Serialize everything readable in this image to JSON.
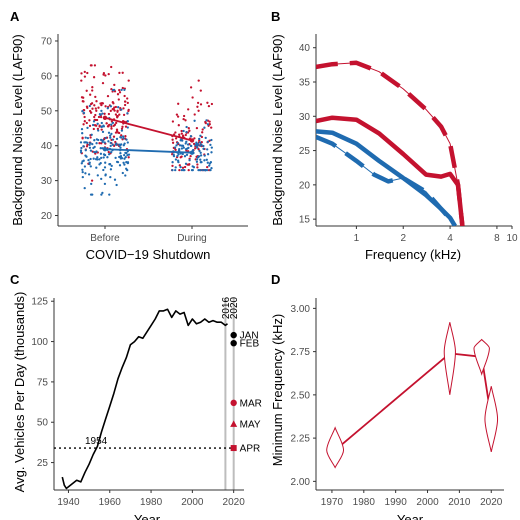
{
  "colors": {
    "red": "#c4122f",
    "blue": "#1f6bb0",
    "black": "#000000",
    "grey": "#bdbdbd"
  },
  "chart_data": [
    {
      "panel": "A",
      "type": "scatter",
      "xlabel": "COVID−19 Shutdown",
      "ylabel": "Background Noise Level (LAF90)",
      "categories": [
        "Before",
        "During"
      ],
      "ylim": [
        17,
        72
      ],
      "yticks": [
        "20",
        "30",
        "40",
        "50",
        "60",
        "70"
      ],
      "series": [
        {
          "color": "red",
          "means": [
            48,
            41.5
          ],
          "spread": [
            [
              30,
              63
            ],
            [
              33,
              62
            ]
          ]
        },
        {
          "color": "blue",
          "means": [
            39,
            38
          ],
          "spread": [
            [
              26,
              56
            ],
            [
              33,
              52
            ]
          ]
        }
      ]
    },
    {
      "panel": "B",
      "type": "line",
      "xlabel": "Frequency (kHz)",
      "ylabel": "Background Noise Level (LAF90)",
      "xscale": "log",
      "xlim": [
        0.55,
        10
      ],
      "ylim": [
        14,
        42
      ],
      "xticks": [
        "1",
        "2",
        "4",
        "8",
        "10"
      ],
      "yticks": [
        "15",
        "20",
        "25",
        "30",
        "35",
        "40"
      ],
      "series": [
        {
          "color": "red",
          "style": "dashed",
          "x": [
            0.55,
            0.7,
            1,
            1.4,
            2,
            2.8,
            3.5,
            4,
            4.5,
            4.8
          ],
          "y": [
            37.2,
            37.6,
            37.8,
            36.5,
            34,
            31,
            28.5,
            26,
            20,
            14
          ]
        },
        {
          "color": "red",
          "style": "solid",
          "x": [
            0.55,
            0.7,
            1,
            1.4,
            2,
            2.8,
            3.5,
            4,
            4.5,
            4.8
          ],
          "y": [
            29.3,
            29.8,
            29.5,
            27.5,
            24.5,
            21.5,
            21.2,
            21.6,
            20,
            14
          ]
        },
        {
          "color": "blue",
          "style": "solid",
          "x": [
            0.55,
            0.7,
            1,
            1.4,
            2,
            2.8,
            3.5,
            4,
            4.3
          ],
          "y": [
            27.8,
            27.6,
            26,
            23.5,
            21,
            18.5,
            16.5,
            15.2,
            14
          ]
        },
        {
          "color": "blue",
          "style": "dashed",
          "x": [
            0.55,
            0.7,
            1,
            1.3,
            1.6,
            2,
            2.8,
            3.5,
            4,
            4.3
          ],
          "y": [
            27,
            26,
            23.5,
            21.5,
            20.5,
            21,
            19,
            16.5,
            15,
            14
          ]
        }
      ]
    },
    {
      "panel": "C",
      "type": "line",
      "xlabel": "Year",
      "ylabel": "Avg. Vehicles Per Day (thousands)",
      "xlim": [
        1933,
        2025
      ],
      "ylim": [
        8,
        127
      ],
      "xticks": [
        "1940",
        "1960",
        "1980",
        "2000",
        "2020"
      ],
      "yticks": [
        "25",
        "50",
        "75",
        "100",
        "125"
      ],
      "series": [
        {
          "color": "black",
          "x": [
            1937,
            1938,
            1939,
            1940,
            1942,
            1944,
            1946,
            1948,
            1950,
            1952,
            1954,
            1956,
            1958,
            1960,
            1962,
            1964,
            1966,
            1968,
            1970,
            1972,
            1974,
            1976,
            1978,
            1980,
            1982,
            1984,
            1986,
            1988,
            1990,
            1992,
            1994,
            1996,
            1998,
            2000,
            2002,
            2004,
            2006,
            2008,
            2010,
            2012,
            2014,
            2016,
            2017
          ],
          "y": [
            16,
            11,
            9,
            10,
            12,
            14,
            13,
            19,
            24,
            30,
            35,
            44,
            52,
            60,
            68,
            77,
            84,
            90,
            98,
            100,
            103,
            102,
            106,
            110,
            114,
            119,
            119,
            120,
            115,
            119,
            117,
            118,
            110,
            114,
            111,
            112,
            114,
            112,
            113,
            112,
            112,
            110,
            111
          ]
        }
      ],
      "reference_line": {
        "y": 34,
        "label": "1954"
      },
      "vertical_lines": [
        {
          "x": 2016,
          "label": "2016"
        },
        {
          "x": 2020,
          "label": "2020"
        }
      ],
      "points": [
        {
          "x": 2020,
          "y": 104,
          "label": "JAN",
          "color": "black",
          "marker": "circle"
        },
        {
          "x": 2020,
          "y": 99,
          "label": "FEB",
          "color": "black",
          "marker": "circle"
        },
        {
          "x": 2020,
          "y": 62,
          "label": "MAR",
          "color": "red",
          "marker": "circle"
        },
        {
          "x": 2020,
          "y": 49,
          "label": "MAY",
          "color": "red",
          "marker": "triangle"
        },
        {
          "x": 2020,
          "y": 34,
          "label": "APR",
          "color": "red",
          "marker": "square"
        }
      ]
    },
    {
      "panel": "D",
      "type": "line",
      "xlabel": "Year",
      "ylabel": "Minimum Frequency (kHz)",
      "xlim": [
        1965,
        2024
      ],
      "ylim": [
        1.95,
        3.06
      ],
      "xticks": [
        "1970",
        "1980",
        "1990",
        "2000",
        "2010",
        "2020"
      ],
      "yticks": [
        "2.00",
        "2.25",
        "2.50",
        "2.75",
        "3.00"
      ],
      "series": [
        {
          "color": "red",
          "x": [
            1971,
            2007,
            2017,
            2020
          ],
          "y": [
            2.18,
            2.74,
            2.72,
            2.36
          ]
        }
      ],
      "violins": [
        {
          "x": 1971,
          "lo": 2.08,
          "hi": 2.31,
          "mid": 2.18,
          "width": 1.2
        },
        {
          "x": 2007,
          "lo": 2.5,
          "hi": 2.92,
          "mid": 2.75,
          "width": 0.8
        },
        {
          "x": 2017,
          "lo": 2.62,
          "hi": 2.82,
          "mid": 2.77,
          "width": 1.1
        },
        {
          "x": 2020,
          "lo": 2.17,
          "hi": 2.55,
          "mid": 2.36,
          "width": 0.9
        }
      ]
    }
  ]
}
